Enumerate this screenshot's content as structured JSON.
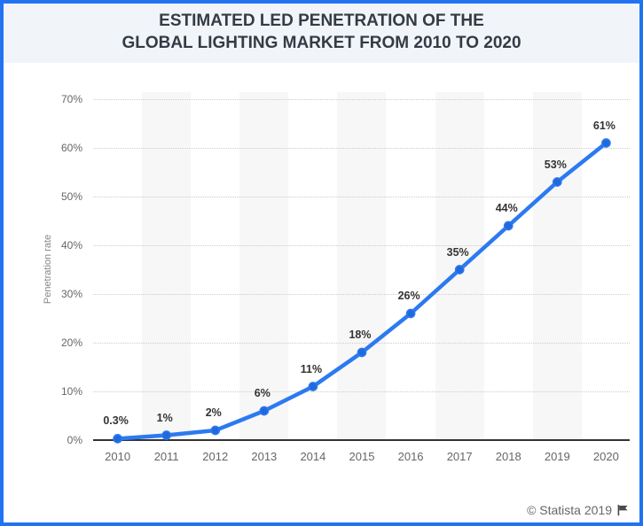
{
  "card": {
    "title_line1": "ESTIMATED LED PENETRATION OF THE",
    "title_line2": "GLOBAL LIGHTING MARKET FROM 2010 TO 2020"
  },
  "footer": {
    "attribution": "© Statista 2019"
  },
  "chart_data": {
    "type": "line",
    "title": "ESTIMATED LED PENETRATION OF THE GLOBAL LIGHTING MARKET FROM 2010 TO 2020",
    "categories": [
      "2010",
      "2011",
      "2012",
      "2013",
      "2014",
      "2015",
      "2016",
      "2017",
      "2018",
      "2019",
      "2020"
    ],
    "values": [
      0.3,
      1,
      2,
      6,
      11,
      18,
      26,
      35,
      44,
      53,
      61
    ],
    "point_labels": [
      "0.3%",
      "1%",
      "2%",
      "6%",
      "11%",
      "18%",
      "26%",
      "35%",
      "44%",
      "53%",
      "61%"
    ],
    "xlabel": "",
    "ylabel": "Penetration rate",
    "ylim": [
      0,
      70
    ],
    "ytick_labels": [
      "0%",
      "10%",
      "20%",
      "30%",
      "40%",
      "50%",
      "60%",
      "70%"
    ],
    "grid": "horizontal-dotted",
    "legend": "none",
    "line_color": "#2b7af0",
    "marker_fill": "#2268dd",
    "band_color": "#f7f7f8",
    "axis_text_color": "#666666",
    "label_text_color": "#333333",
    "border_color": "#2173f2",
    "title_bg_color": "#f1f5f9"
  }
}
